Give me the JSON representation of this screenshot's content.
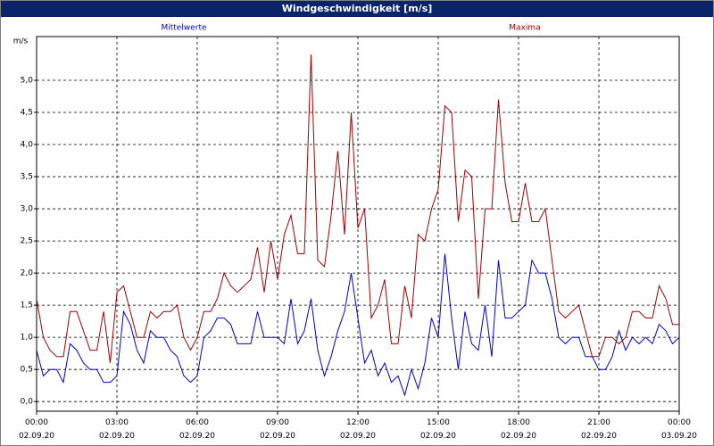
{
  "chart_data": {
    "type": "line",
    "title": "Windgeschwindigkeit [m/s]",
    "y_label": "m/s",
    "x": [
      0,
      0.25,
      0.5,
      0.75,
      1,
      1.25,
      1.5,
      1.75,
      2,
      2.25,
      2.5,
      2.75,
      3,
      3.25,
      3.5,
      3.75,
      4,
      4.25,
      4.5,
      4.75,
      5,
      5.25,
      5.5,
      5.75,
      6,
      6.25,
      6.5,
      6.75,
      7,
      7.25,
      7.5,
      7.75,
      8,
      8.25,
      8.5,
      8.75,
      9,
      9.25,
      9.5,
      9.75,
      10,
      10.25,
      10.5,
      10.75,
      11,
      11.25,
      11.5,
      11.75,
      12,
      12.25,
      12.5,
      12.75,
      13,
      13.25,
      13.5,
      13.75,
      14,
      14.25,
      14.5,
      14.75,
      15,
      15.25,
      15.5,
      15.75,
      16,
      16.25,
      16.5,
      16.75,
      17,
      17.25,
      17.5,
      17.75,
      18,
      18.25,
      18.5,
      18.75,
      19,
      19.25,
      19.5,
      19.75,
      20,
      20.25,
      20.5,
      20.75,
      21,
      21.25,
      21.5,
      21.75,
      22,
      22.25,
      22.5,
      22.75,
      23,
      23.25,
      23.5,
      23.75,
      24
    ],
    "series": [
      {
        "name": "Mittelwerte",
        "color": "#0000c8",
        "values": [
          0.8,
          0.4,
          0.5,
          0.5,
          0.3,
          0.9,
          0.8,
          0.6,
          0.5,
          0.5,
          0.3,
          0.3,
          0.4,
          1.4,
          1.2,
          0.8,
          0.6,
          1.1,
          1.0,
          1.0,
          0.8,
          0.7,
          0.4,
          0.3,
          0.4,
          1.0,
          1.1,
          1.3,
          1.3,
          1.2,
          0.9,
          0.9,
          0.9,
          1.4,
          1.0,
          1.0,
          1.0,
          0.9,
          1.6,
          0.9,
          1.1,
          1.6,
          0.8,
          0.4,
          0.7,
          1.1,
          1.4,
          2.0,
          1.3,
          0.6,
          0.8,
          0.4,
          0.6,
          0.3,
          0.4,
          0.1,
          0.5,
          0.2,
          0.6,
          1.3,
          1.0,
          2.3,
          1.3,
          0.5,
          1.4,
          0.9,
          0.8,
          1.5,
          0.7,
          2.2,
          1.3,
          1.3,
          1.4,
          1.5,
          2.2,
          2.0,
          2.0,
          1.6,
          1.0,
          0.9,
          1.0,
          1.0,
          0.7,
          0.7,
          0.5,
          0.5,
          0.7,
          1.1,
          0.8,
          1.0,
          0.9,
          1.0,
          0.9,
          1.2,
          1.1,
          0.9,
          1.0
        ]
      },
      {
        "name": "Maxima",
        "color": "#a00000",
        "values": [
          1.6,
          1.0,
          0.8,
          0.7,
          0.7,
          1.4,
          1.4,
          1.1,
          0.8,
          0.8,
          1.4,
          0.6,
          1.7,
          1.8,
          1.4,
          1.0,
          1.0,
          1.4,
          1.3,
          1.4,
          1.4,
          1.5,
          1.0,
          0.8,
          1.0,
          1.4,
          1.4,
          1.6,
          2.0,
          1.8,
          1.7,
          1.8,
          1.9,
          2.4,
          1.7,
          2.5,
          1.9,
          2.6,
          2.9,
          2.3,
          2.3,
          5.4,
          2.2,
          2.1,
          2.9,
          3.9,
          2.6,
          4.5,
          2.7,
          3.0,
          1.3,
          1.5,
          1.9,
          0.9,
          0.9,
          1.8,
          1.3,
          2.6,
          2.5,
          3.0,
          3.3,
          4.6,
          4.5,
          2.8,
          3.6,
          3.5,
          1.6,
          3.0,
          3.0,
          4.7,
          3.4,
          2.8,
          2.8,
          3.4,
          2.8,
          2.8,
          3.0,
          2.2,
          1.4,
          1.3,
          1.4,
          1.5,
          1.1,
          0.7,
          0.7,
          1.0,
          1.0,
          0.9,
          1.0,
          1.4,
          1.4,
          1.3,
          1.3,
          1.8,
          1.6,
          1.2,
          1.2
        ]
      }
    ],
    "xlim": [
      0,
      24
    ],
    "xticks": [
      {
        "value": 0,
        "label": "00:00\n02.09.20"
      },
      {
        "value": 3,
        "label": "03:00\n02.09.20"
      },
      {
        "value": 6,
        "label": "06:00\n02.09.20"
      },
      {
        "value": 9,
        "label": "09:00\n02.09.20"
      },
      {
        "value": 12,
        "label": "12:00\n02.09.20"
      },
      {
        "value": 15,
        "label": "15:00\n02.09.20"
      },
      {
        "value": 18,
        "label": "18:00\n02.09.20"
      },
      {
        "value": 21,
        "label": "21:00\n02.09.20"
      },
      {
        "value": 24,
        "label": "00:00\n03.09.20"
      }
    ],
    "ylim": [
      -0.15,
      5.68
    ],
    "yticks": [
      {
        "value": 0,
        "label": "0,0"
      },
      {
        "value": 0.5,
        "label": "0,5"
      },
      {
        "value": 1,
        "label": "1,0"
      },
      {
        "value": 1.5,
        "label": "1,5"
      },
      {
        "value": 2,
        "label": "2,0"
      },
      {
        "value": 2.5,
        "label": "2,5"
      },
      {
        "value": 3,
        "label": "3,0"
      },
      {
        "value": 3.5,
        "label": "3,5"
      },
      {
        "value": 4,
        "label": "4,0"
      },
      {
        "value": 4.5,
        "label": "4,5"
      },
      {
        "value": 5,
        "label": "5,0"
      }
    ],
    "grid": true
  }
}
